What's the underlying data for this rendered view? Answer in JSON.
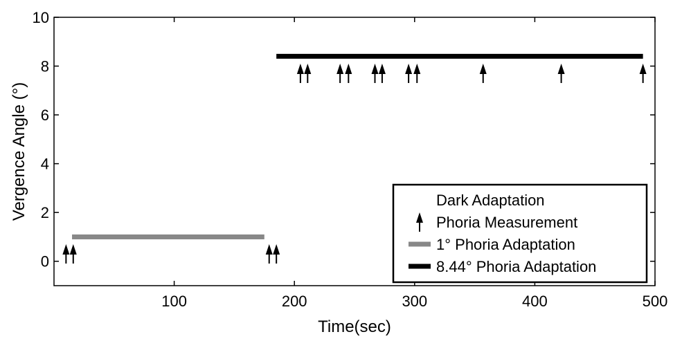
{
  "chart_data": {
    "type": "line",
    "title": "",
    "xlabel": "Time(sec)",
    "ylabel": "Vergence Angle (°)",
    "xlim": [
      0,
      500
    ],
    "ylim": [
      -1,
      10
    ],
    "x_ticks": [
      100,
      200,
      300,
      400,
      500
    ],
    "y_ticks": [
      0,
      2,
      4,
      6,
      8,
      10
    ],
    "grid": false,
    "legend_position": "bottom-right",
    "series": [
      {
        "name": "1° Phoria Adaptation",
        "color": "#888888",
        "x": [
          15,
          175
        ],
        "y": [
          1,
          1
        ]
      },
      {
        "name": "8.44° Phoria Adaptation",
        "color": "#000000",
        "x": [
          185,
          490
        ],
        "y": [
          8.4,
          8.4
        ]
      }
    ],
    "markers": {
      "name": "Phoria Measurement",
      "symbol": "up-arrow",
      "points": [
        {
          "x": 10,
          "y": 0.7
        },
        {
          "x": 16,
          "y": 0.7
        },
        {
          "x": 179,
          "y": 0.7
        },
        {
          "x": 185,
          "y": 0.7
        },
        {
          "x": 205,
          "y": 8.1
        },
        {
          "x": 211,
          "y": 8.1
        },
        {
          "x": 238,
          "y": 8.1
        },
        {
          "x": 245,
          "y": 8.1
        },
        {
          "x": 267,
          "y": 8.1
        },
        {
          "x": 273,
          "y": 8.1
        },
        {
          "x": 295,
          "y": 8.1
        },
        {
          "x": 302,
          "y": 8.1
        },
        {
          "x": 357,
          "y": 8.1
        },
        {
          "x": 422,
          "y": 8.1
        },
        {
          "x": 490,
          "y": 8.1
        }
      ]
    },
    "legend": {
      "items": [
        {
          "label": "Dark Adaptation",
          "symbol": "none"
        },
        {
          "label": "Phoria Measurement",
          "symbol": "up-arrow"
        },
        {
          "label": "1° Phoria Adaptation",
          "symbol": "line",
          "color": "#888888"
        },
        {
          "label": "8.44° Phoria Adaptation",
          "symbol": "line",
          "color": "#000000"
        }
      ]
    }
  }
}
